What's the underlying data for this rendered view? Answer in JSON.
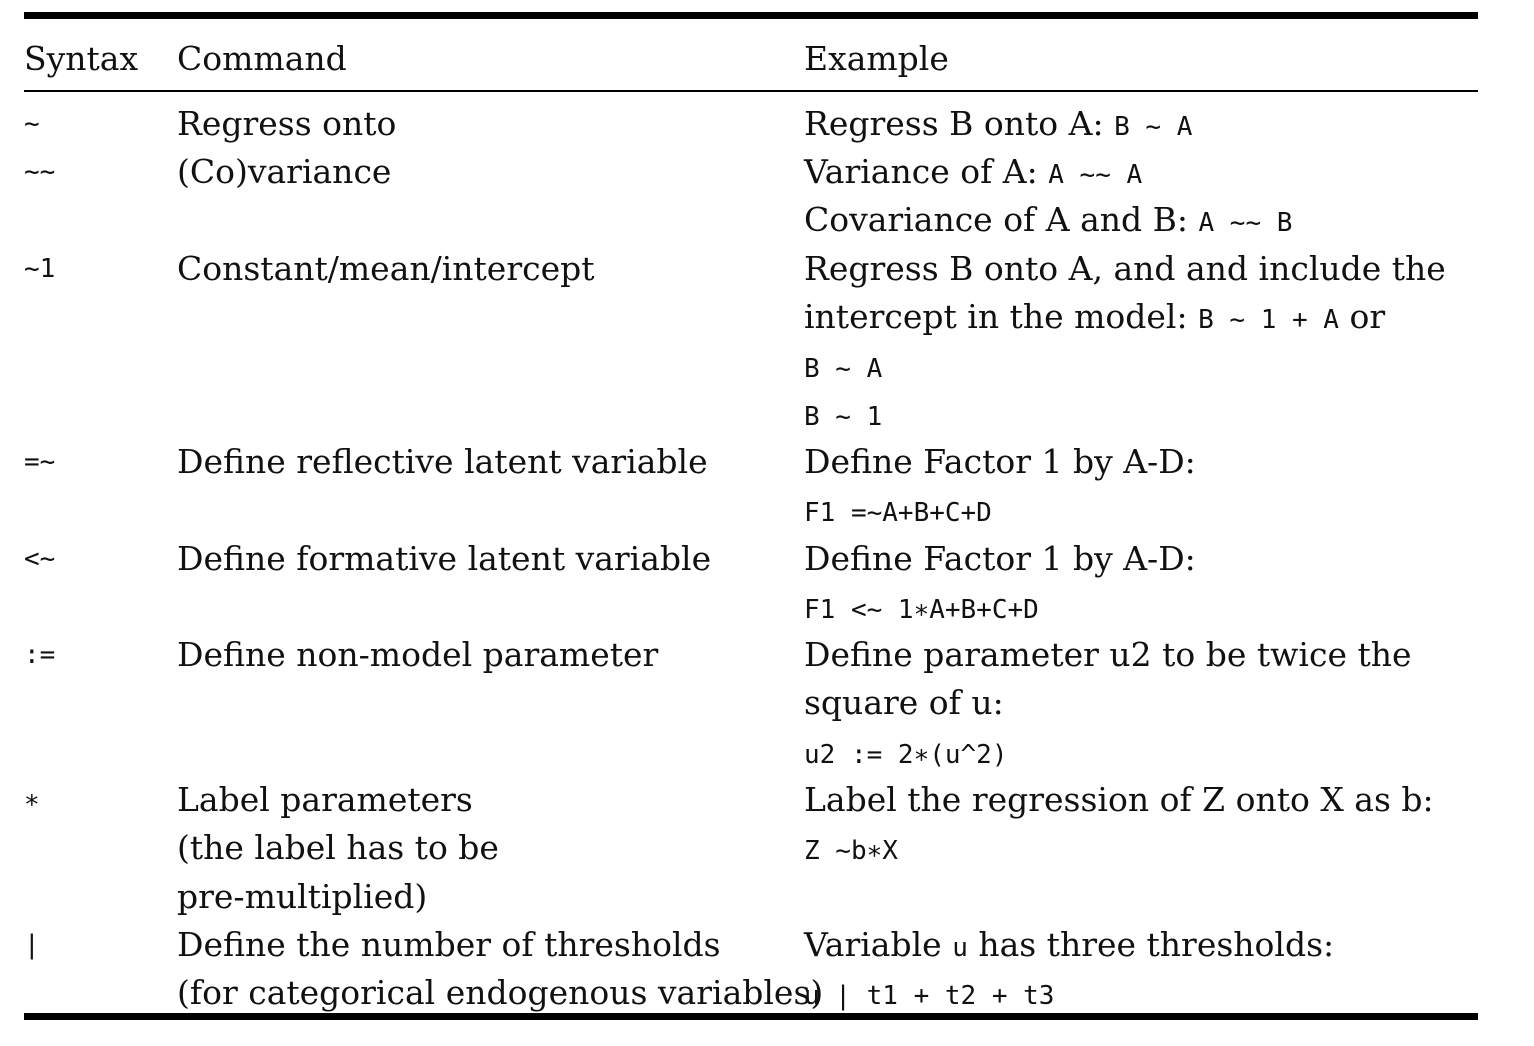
{
  "table": {
    "headers": {
      "syntax": "Syntax",
      "command": "Command",
      "example": "Example"
    },
    "rows": [
      {
        "syntax": "~",
        "command": [
          "Regress onto"
        ],
        "example": [
          [
            {
              "t": "Regress B onto A: ",
              "m": false
            },
            {
              "t": "B ~ A",
              "m": true
            }
          ]
        ]
      },
      {
        "syntax": "~~",
        "command": [
          "(Co)variance"
        ],
        "example": [
          [
            {
              "t": "Variance of A: ",
              "m": false
            },
            {
              "t": "A ~~ A",
              "m": true
            }
          ],
          [
            {
              "t": "Covariance of A and B: ",
              "m": false
            },
            {
              "t": "A ~~ B",
              "m": true
            }
          ]
        ]
      },
      {
        "syntax": "~1",
        "command": [
          "Constant/mean/intercept"
        ],
        "example": [
          [
            {
              "t": "Regress B onto A, and and include the",
              "m": false
            }
          ],
          [
            {
              "t": "intercept in the model: ",
              "m": false
            },
            {
              "t": "B ~ 1 + A",
              "m": true
            },
            {
              "t": " or",
              "m": false
            }
          ],
          [
            {
              "t": "B ~ A",
              "m": true
            }
          ],
          [
            {
              "t": "B ~ 1",
              "m": true
            }
          ]
        ]
      },
      {
        "syntax": "=~",
        "command": [
          "Define reflective latent variable"
        ],
        "example": [
          [
            {
              "t": "Define Factor 1 by A-D:",
              "m": false
            }
          ],
          [
            {
              "t": "F1 =~A+B+C+D",
              "m": true
            }
          ]
        ]
      },
      {
        "syntax": "<~",
        "command": [
          "Define formative latent variable"
        ],
        "example": [
          [
            {
              "t": "Define Factor 1 by A-D:",
              "m": false
            }
          ],
          [
            {
              "t": "F1 <~ 1∗A+B+C+D",
              "m": true
            }
          ]
        ]
      },
      {
        "syntax": ":=",
        "command": [
          "Define non-model parameter"
        ],
        "example": [
          [
            {
              "t": "Define parameter u2 to be twice the",
              "m": false
            }
          ],
          [
            {
              "t": "square of u:",
              "m": false
            }
          ],
          [
            {
              "t": "u2 := 2∗(u^2)",
              "m": true
            }
          ]
        ]
      },
      {
        "syntax": "∗",
        "command": [
          "Label parameters",
          "(the label has to be",
          "pre-multiplied)"
        ],
        "example": [
          [
            {
              "t": "Label the regression of Z onto X as b:",
              "m": false
            }
          ],
          [
            {
              "t": "Z ~b∗X",
              "m": true
            }
          ]
        ]
      },
      {
        "syntax": "|",
        "command": [
          "Define the number of thresholds",
          "(for categorical endogenous variables)"
        ],
        "example": [
          [
            {
              "t": "Variable ",
              "m": false
            },
            {
              "t": "u",
              "m": true
            },
            {
              "t": " has three thresholds:",
              "m": false
            }
          ],
          [
            {
              "t": "u | t1 + t2 + t3",
              "m": true
            }
          ]
        ]
      }
    ]
  }
}
